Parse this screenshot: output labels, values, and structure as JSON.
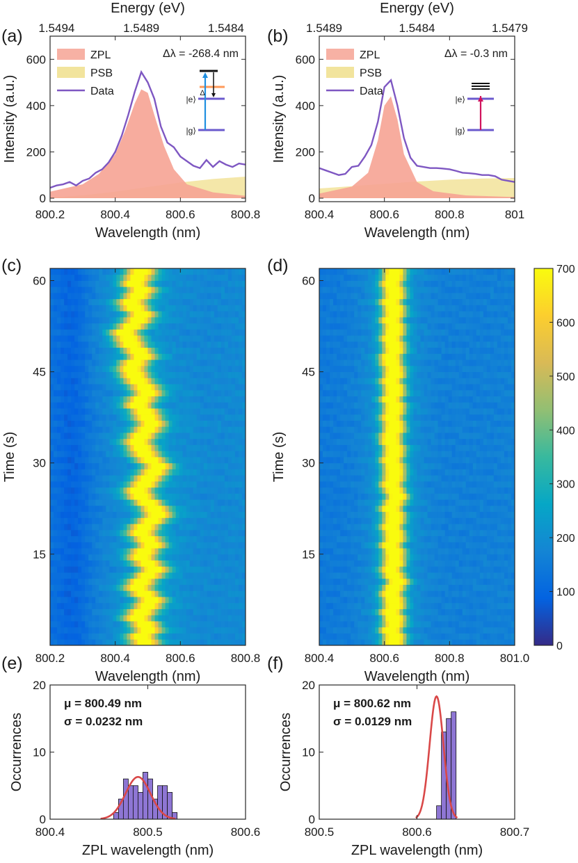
{
  "colors": {
    "zpl": "#f6a394",
    "psb": "#f0df8c",
    "data_line": "#7e57c2",
    "fit": "#d94848",
    "hist": "#8e76d4",
    "level": "#6a5acd",
    "excite_a": "#1f8fe0",
    "excite_b": "#d1135d",
    "red_text": "#d94848"
  },
  "panels": {
    "a": {
      "label": "(a)"
    },
    "b": {
      "label": "(b)"
    },
    "c": {
      "label": "(c)"
    },
    "d": {
      "label": "(d)"
    },
    "e": {
      "label": "(e)"
    },
    "f": {
      "label": "(f)"
    }
  },
  "colorbar": {
    "ticks": [
      "0",
      "100",
      "200",
      "300",
      "400",
      "500",
      "600",
      "700"
    ],
    "colormap": "parula"
  },
  "chart_data": [
    {
      "id": "a",
      "type": "area",
      "xlabel": "Wavelength (nm)",
      "ylabel": "Intensity (a.u.)",
      "top_axis_label": "Energy (eV)",
      "top_ticks": [
        "1.5494",
        "1.5489",
        "1.5484"
      ],
      "top_tick_positions": [
        800.22,
        800.48,
        800.74
      ],
      "xlim": [
        800.2,
        800.8
      ],
      "ylim": [
        -15,
        700
      ],
      "xticks": [
        "800.2",
        "800.4",
        "800.6",
        "800.8"
      ],
      "yticks": [
        "0",
        "200",
        "400",
        "600"
      ],
      "legend": [
        "ZPL",
        "PSB",
        "Data"
      ],
      "legend_position": "top-left",
      "annotation": "Δλ = -268.4 nm",
      "inset_labels": [
        "Δ",
        "|e⟩",
        "|g⟩"
      ],
      "inset_style": "a",
      "series": [
        {
          "name": "ZPL",
          "kind": "area",
          "x": [
            800.2,
            800.3,
            800.35,
            800.4,
            800.43,
            800.46,
            800.48,
            800.5,
            800.52,
            800.55,
            800.58,
            800.62,
            800.7,
            800.8
          ],
          "y": [
            28,
            60,
            105,
            190,
            290,
            410,
            470,
            455,
            360,
            225,
            125,
            60,
            25,
            10
          ]
        },
        {
          "name": "PSB",
          "kind": "area",
          "x": [
            800.2,
            800.3,
            800.4,
            800.5,
            800.6,
            800.7,
            800.8
          ],
          "y": [
            3,
            12,
            28,
            48,
            68,
            83,
            93
          ]
        },
        {
          "name": "Data",
          "kind": "line",
          "x": [
            800.2,
            800.22,
            800.24,
            800.26,
            800.28,
            800.3,
            800.32,
            800.34,
            800.36,
            800.38,
            800.4,
            800.42,
            800.44,
            800.46,
            800.48,
            800.5,
            800.52,
            800.54,
            800.56,
            800.58,
            800.6,
            800.62,
            800.64,
            800.66,
            800.68,
            800.7,
            800.72,
            800.74,
            800.76,
            800.78,
            800.8
          ],
          "y": [
            45,
            55,
            60,
            70,
            55,
            75,
            85,
            110,
            125,
            155,
            200,
            270,
            360,
            460,
            545,
            500,
            430,
            310,
            240,
            220,
            180,
            160,
            140,
            130,
            165,
            135,
            160,
            145,
            135,
            150,
            145
          ]
        }
      ]
    },
    {
      "id": "b",
      "type": "area",
      "xlabel": "Wavelength (nm)",
      "ylabel": "Intensity (a.u.)",
      "top_axis_label": "Energy (eV)",
      "top_ticks": [
        "1.5489",
        "1.5484",
        "1.5479"
      ],
      "top_tick_positions": [
        800.415,
        800.7,
        800.985
      ],
      "xlim": [
        800.4,
        801.0
      ],
      "ylim": [
        -15,
        700
      ],
      "xticks": [
        "800.4",
        "800.6",
        "800.8",
        "801"
      ],
      "yticks": [
        "0",
        "200",
        "400",
        "600"
      ],
      "legend": [
        "ZPL",
        "PSB",
        "Data"
      ],
      "legend_position": "top-left",
      "annotation": "Δλ = -0.3 nm",
      "inset_labels": [
        "|e⟩",
        "|g⟩"
      ],
      "inset_style": "b",
      "series": [
        {
          "name": "ZPL",
          "kind": "area",
          "x": [
            800.4,
            800.5,
            800.55,
            800.58,
            800.6,
            800.62,
            800.64,
            800.66,
            800.7,
            800.75,
            800.85,
            801.0
          ],
          "y": [
            20,
            50,
            110,
            250,
            400,
            440,
            340,
            190,
            70,
            30,
            12,
            5
          ]
        },
        {
          "name": "PSB",
          "kind": "area",
          "x": [
            800.4,
            800.5,
            800.6,
            800.7,
            800.8,
            800.9,
            801.0
          ],
          "y": [
            42,
            52,
            62,
            72,
            80,
            85,
            87
          ]
        },
        {
          "name": "Data",
          "kind": "line",
          "x": [
            800.4,
            800.42,
            800.44,
            800.46,
            800.48,
            800.5,
            800.52,
            800.54,
            800.56,
            800.58,
            800.6,
            800.62,
            800.64,
            800.66,
            800.68,
            800.7,
            800.72,
            800.74,
            800.76,
            800.78,
            800.8,
            800.82,
            800.84,
            800.86,
            800.88,
            800.9,
            800.92,
            800.94,
            800.96,
            800.98,
            801.0
          ],
          "y": [
            130,
            120,
            110,
            100,
            105,
            135,
            140,
            180,
            230,
            330,
            480,
            510,
            400,
            260,
            175,
            140,
            135,
            130,
            130,
            128,
            125,
            118,
            110,
            108,
            105,
            100,
            100,
            95,
            80,
            75,
            70
          ]
        }
      ]
    },
    {
      "id": "c",
      "type": "heatmap",
      "xlabel": "Wavelength (nm)",
      "ylabel": "Time (s)",
      "xlim": [
        800.2,
        800.8
      ],
      "ylim": [
        0,
        62
      ],
      "xticks": [
        "800.2",
        "800.4",
        "800.6",
        "800.8"
      ],
      "yticks": [
        "15",
        "30",
        "45",
        "60"
      ],
      "clim": [
        0,
        700
      ],
      "n_time_bins": 62,
      "n_wavelength_bins": 56,
      "peak_height": 600,
      "peak_width_nm": 0.03,
      "background": 130,
      "background_slope": 60,
      "peak_centers_nm": [
        800.49,
        800.48,
        800.5,
        800.49,
        800.47,
        800.48,
        800.5,
        800.51,
        800.49,
        800.47,
        800.48,
        800.5,
        800.52,
        800.5,
        800.48,
        800.49,
        800.51,
        800.5,
        800.48,
        800.49,
        800.51,
        800.53,
        800.52,
        800.5,
        800.48,
        800.47,
        800.49,
        800.5,
        800.52,
        800.53,
        800.51,
        800.49,
        800.48,
        800.47,
        800.48,
        800.5,
        800.51,
        800.5,
        800.49,
        800.47,
        800.48,
        800.5,
        800.49,
        800.47,
        800.46,
        800.45,
        800.46,
        800.48,
        800.47,
        800.45,
        800.44,
        800.43,
        800.45,
        800.47,
        800.48,
        800.46,
        800.45,
        800.47,
        800.48,
        800.46,
        800.47,
        800.48
      ]
    },
    {
      "id": "d",
      "type": "heatmap",
      "xlabel": "Wavelength (nm)",
      "ylabel": "Time (s)",
      "xlim": [
        800.4,
        801.0
      ],
      "ylim": [
        0,
        62
      ],
      "xticks": [
        "800.4",
        "800.6",
        "800.8",
        "801.0"
      ],
      "yticks": [
        "15",
        "30",
        "45",
        "60"
      ],
      "clim": [
        0,
        700
      ],
      "n_time_bins": 62,
      "n_wavelength_bins": 56,
      "peak_height": 700,
      "peak_width_nm": 0.022,
      "background": 145,
      "background_slope": 20,
      "peak_centers_nm": [
        800.63,
        800.63,
        800.62,
        800.63,
        800.63,
        800.62,
        800.63,
        800.63,
        800.62,
        800.63,
        800.64,
        800.63,
        800.62,
        800.63,
        800.63,
        800.63,
        800.62,
        800.63,
        800.63,
        800.62,
        800.63,
        800.63,
        800.62,
        800.63,
        800.64,
        800.63,
        800.62,
        800.63,
        800.63,
        800.63,
        800.62,
        800.63,
        800.63,
        800.62,
        800.62,
        800.63,
        800.63,
        800.62,
        800.63,
        800.63,
        800.62,
        800.63,
        800.63,
        800.62,
        800.63,
        800.63,
        800.62,
        800.62,
        800.63,
        800.63,
        800.62,
        800.63,
        800.63,
        800.62,
        800.63,
        800.63,
        800.62,
        800.63,
        800.63,
        800.62,
        800.63,
        800.63
      ]
    },
    {
      "id": "e",
      "type": "bar",
      "xlabel": "ZPL wavelength (nm)",
      "ylabel": "Occurrences",
      "xlim": [
        800.4,
        800.6
      ],
      "ylim": [
        0,
        20
      ],
      "xticks": [
        "800.4",
        "800.5",
        "800.6"
      ],
      "yticks": [
        "0",
        "10",
        "20"
      ],
      "bin_width": 0.005,
      "bins_left": [
        800.465,
        800.47,
        800.475,
        800.48,
        800.485,
        800.49,
        800.495,
        800.5,
        800.505,
        800.51,
        800.515,
        800.52,
        800.525
      ],
      "counts": [
        1,
        3,
        6,
        5,
        5,
        4,
        7,
        6,
        3,
        5,
        5,
        4,
        1
      ],
      "fit": {
        "mu": 800.49,
        "sigma": 0.0232,
        "amplitude": 6.3
      },
      "annotation": [
        "μ = 800.49 nm",
        "σ = 0.0232 nm"
      ]
    },
    {
      "id": "f",
      "type": "bar",
      "xlabel": "ZPL wavelength (nm)",
      "ylabel": "Occurrences",
      "xlim": [
        800.5,
        800.7
      ],
      "ylim": [
        0,
        20
      ],
      "xticks": [
        "800.5",
        "800.6",
        "800.7"
      ],
      "yticks": [
        "0",
        "10",
        "20"
      ],
      "bin_width": 0.005,
      "bins_left": [
        800.62,
        800.625,
        800.63,
        800.635
      ],
      "counts": [
        2,
        13,
        15,
        16
      ],
      "fit": {
        "mu": 800.62,
        "sigma": 0.0129,
        "amplitude": 18.3
      },
      "annotation": [
        "μ = 800.62 nm",
        "σ = 0.0129 nm"
      ]
    }
  ]
}
